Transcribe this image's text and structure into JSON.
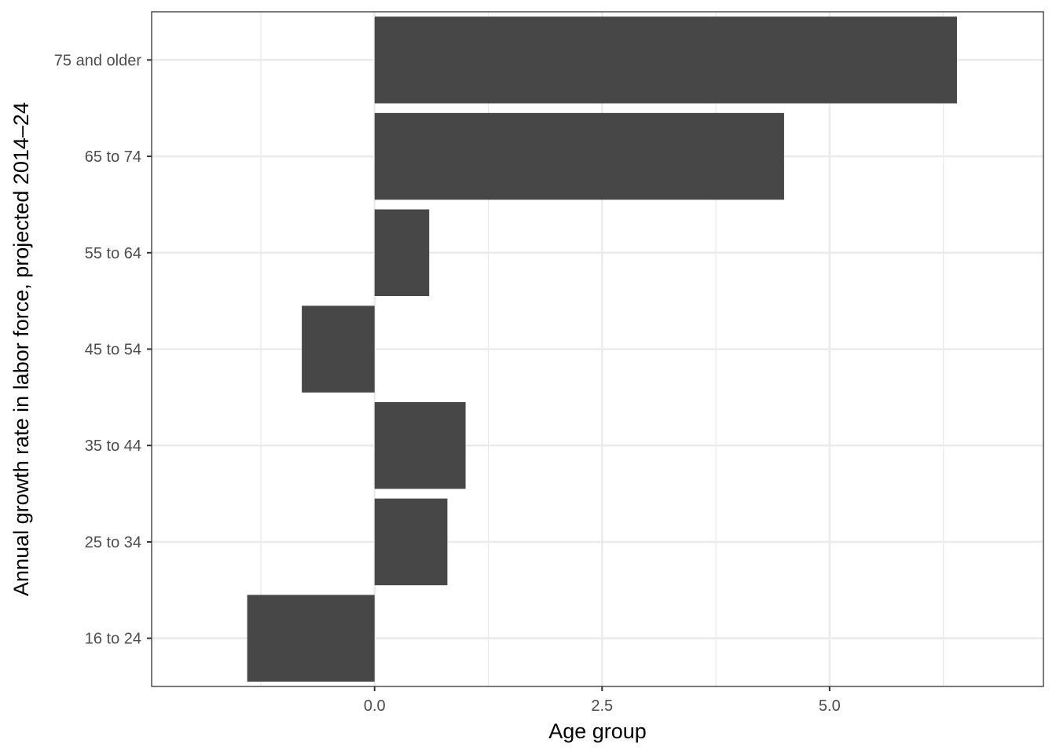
{
  "chart_data": {
    "type": "bar",
    "orientation": "horizontal",
    "categories": [
      "16 to 24",
      "25 to 34",
      "35 to 44",
      "45 to 54",
      "55 to 64",
      "65 to 74",
      "75 and older"
    ],
    "values": [
      -1.4,
      0.8,
      1.0,
      -0.8,
      0.6,
      4.5,
      6.4
    ],
    "xlabel": "Age group",
    "ylabel": "Annual growth rate in labor force, projected 2014–24",
    "xlim": [
      -2.45,
      7.35
    ],
    "x_ticks": [
      0.0,
      2.5,
      5.0
    ],
    "x_tick_labels": [
      "0.0",
      "2.5",
      "5.0"
    ],
    "grid": true,
    "bar_color": "#474747",
    "grid_color": "#ebebeb"
  }
}
